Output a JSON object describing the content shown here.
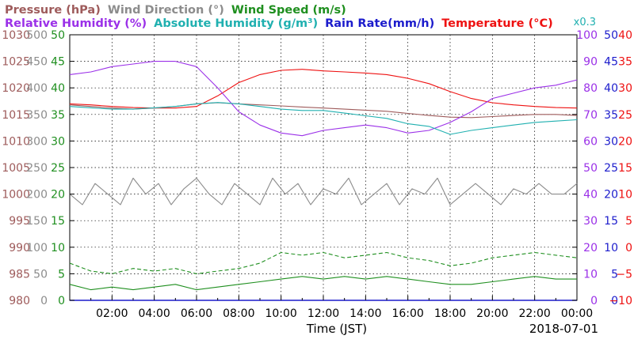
{
  "chart_data": {
    "type": "line",
    "legend": [
      {
        "label": "Pressure (hPa)",
        "color": "#9e5b5b"
      },
      {
        "label": "Wind Direction (°)",
        "color": "#8c8c8c"
      },
      {
        "label": "Wind Speed (m/s)",
        "color": "#1f8f1f"
      },
      {
        "label": "Relative Humidity (%)",
        "color": "#9b30e8"
      },
      {
        "label": "Absolute Humidity (g/m³)",
        "color": "#20b0b0"
      },
      {
        "label": "Rain Rate(mm/h)",
        "color": "#1c1ccc"
      },
      {
        "label": "Temperature (°C)",
        "color": "#ee1111"
      }
    ],
    "abs_humidity_scale_note": "x0.3",
    "xlabel": "Time (JST)",
    "date_label": "2018-07-01",
    "x_ticks": [
      "02:00",
      "04:00",
      "06:00",
      "08:00",
      "10:00",
      "12:00",
      "14:00",
      "16:00",
      "18:00",
      "20:00",
      "22:00",
      "00:00"
    ],
    "x_range_hours": [
      0,
      24
    ],
    "grid": true,
    "left_axes": [
      {
        "name": "pressure",
        "color": "#9e5b5b",
        "labels": [
          "980",
          "985",
          "990",
          "995",
          "1000",
          "1005",
          "1010",
          "1015",
          "1020",
          "1025",
          "1030"
        ]
      },
      {
        "name": "wind_direction",
        "color": "#8c8c8c",
        "labels": [
          "0",
          "50",
          "100",
          "150",
          "200",
          "250",
          "300",
          "350",
          "400",
          "450",
          "500"
        ]
      },
      {
        "name": "wind_speed",
        "color": "#1f8f1f",
        "labels": [
          "0",
          "5",
          "10",
          "15",
          "20",
          "25",
          "30",
          "35",
          "40",
          "45",
          "50"
        ]
      }
    ],
    "right_axes": [
      {
        "name": "relative_humidity",
        "color": "#9b30e8",
        "labels": [
          "0",
          "10",
          "20",
          "30",
          "40",
          "50",
          "60",
          "70",
          "80",
          "90",
          "100"
        ]
      },
      {
        "name": "rain_rate",
        "color": "#1c1ccc",
        "labels": [
          "0",
          "5",
          "10",
          "15",
          "20",
          "25",
          "30",
          "35",
          "40",
          "45",
          "50"
        ]
      },
      {
        "name": "temperature",
        "color": "#ee1111",
        "labels": [
          "−10",
          "−5",
          "0",
          "5",
          "10",
          "15",
          "20",
          "25",
          "30",
          "35",
          "40"
        ]
      }
    ],
    "series": [
      {
        "name": "Temperature (°C)",
        "key": "temperature",
        "color": "#ee1111",
        "ylim": [
          -10,
          40
        ],
        "x": [
          0,
          1,
          2,
          3,
          4,
          5,
          6,
          7,
          8,
          9,
          10,
          11,
          12,
          13,
          14,
          15,
          16,
          17,
          18,
          19,
          20,
          21,
          22,
          23,
          24
        ],
        "values": [
          27,
          26.8,
          26.5,
          26.3,
          26.2,
          26.2,
          26.5,
          28.5,
          31,
          32.5,
          33.3,
          33.5,
          33.2,
          33,
          32.8,
          32.5,
          31.8,
          30.8,
          29.3,
          28,
          27.2,
          26.8,
          26.5,
          26.3,
          26.2
        ]
      },
      {
        "name": "Pressure (hPa)",
        "key": "pressure",
        "color": "#9e5b5b",
        "ylim": [
          980,
          1030
        ],
        "x": [
          0,
          1,
          2,
          3,
          4,
          5,
          6,
          7,
          8,
          9,
          10,
          11,
          12,
          13,
          14,
          15,
          16,
          17,
          18,
          19,
          20,
          21,
          22,
          23,
          24
        ],
        "values": [
          1016.8,
          1016.5,
          1016.2,
          1016,
          1016.2,
          1016.5,
          1017,
          1017.2,
          1017,
          1016.8,
          1016.6,
          1016.4,
          1016.2,
          1016,
          1015.8,
          1015.6,
          1015.2,
          1014.8,
          1014.5,
          1014.4,
          1014.6,
          1014.8,
          1015,
          1015,
          1014.8
        ]
      },
      {
        "name": "Relative Humidity (%)",
        "key": "relative_humidity",
        "color": "#9b30e8",
        "ylim": [
          0,
          100
        ],
        "x": [
          0,
          1,
          2,
          3,
          4,
          5,
          6,
          7,
          8,
          9,
          10,
          11,
          12,
          13,
          14,
          15,
          16,
          17,
          18,
          19,
          20,
          21,
          22,
          23,
          24
        ],
        "values": [
          85,
          86,
          88,
          89,
          90,
          90,
          88,
          80,
          71,
          66,
          63,
          62,
          64,
          65,
          66,
          65,
          63,
          64,
          67,
          71,
          76,
          78,
          80,
          81,
          83
        ]
      },
      {
        "name": "Absolute Humidity (g/m³) x0.3",
        "key": "absolute_humidity",
        "color": "#20b0b0",
        "ylim": [
          0,
          100
        ],
        "x": [
          0,
          1,
          2,
          3,
          4,
          5,
          6,
          7,
          8,
          9,
          10,
          11,
          12,
          13,
          14,
          15,
          16,
          17,
          18,
          19,
          20,
          21,
          22,
          23,
          24
        ],
        "values": [
          73,
          72.5,
          72,
          72,
          72.5,
          73,
          74,
          74.5,
          74,
          73,
          72,
          71.5,
          71.5,
          70.5,
          69.5,
          68.5,
          66.5,
          65.5,
          62.5,
          64,
          65,
          66,
          67,
          67.5,
          68
        ]
      },
      {
        "name": "Wind Direction (°)",
        "key": "wind_direction",
        "color": "#8c8c8c",
        "ylim": [
          0,
          500
        ],
        "x": [
          0,
          0.6,
          1.2,
          1.8,
          2.4,
          3,
          3.6,
          4.2,
          4.8,
          5.4,
          6,
          6.6,
          7.2,
          7.8,
          8.4,
          9,
          9.6,
          10.2,
          10.8,
          11.4,
          12,
          12.6,
          13.2,
          13.8,
          14.4,
          15,
          15.6,
          16.2,
          16.8,
          17.4,
          18,
          18.6,
          19.2,
          19.8,
          20.4,
          21,
          21.6,
          22.2,
          22.8,
          23.4,
          24
        ],
        "values": [
          200,
          180,
          220,
          200,
          180,
          230,
          200,
          220,
          180,
          210,
          230,
          200,
          180,
          220,
          200,
          180,
          230,
          200,
          220,
          180,
          210,
          200,
          230,
          180,
          200,
          220,
          180,
          210,
          200,
          230,
          180,
          200,
          220,
          200,
          180,
          210,
          200,
          220,
          200,
          200,
          220
        ]
      },
      {
        "name": "Wind Speed (m/s) gust",
        "key": "wind_speed_gust",
        "color": "#1f8f1f",
        "dashed": true,
        "ylim": [
          0,
          50
        ],
        "x": [
          0,
          1,
          2,
          3,
          4,
          5,
          6,
          7,
          8,
          9,
          10,
          11,
          12,
          13,
          14,
          15,
          16,
          17,
          18,
          19,
          20,
          21,
          22,
          23,
          24
        ],
        "values": [
          7,
          5.5,
          5,
          6,
          5.5,
          6,
          5,
          5.5,
          6,
          7,
          9,
          8.5,
          9,
          8,
          8.5,
          9,
          8,
          7.5,
          6.5,
          7,
          8,
          8.5,
          9,
          8.5,
          8
        ]
      },
      {
        "name": "Wind Speed (m/s)",
        "key": "wind_speed_mean",
        "color": "#1f8f1f",
        "ylim": [
          0,
          50
        ],
        "x": [
          0,
          1,
          2,
          3,
          4,
          5,
          6,
          7,
          8,
          9,
          10,
          11,
          12,
          13,
          14,
          15,
          16,
          17,
          18,
          19,
          20,
          21,
          22,
          23,
          24
        ],
        "values": [
          3,
          2,
          2.5,
          2,
          2.5,
          3,
          2,
          2.5,
          3,
          3.5,
          4,
          4.5,
          4,
          4.5,
          4,
          4.5,
          4,
          3.5,
          3,
          3,
          3.5,
          4,
          4.5,
          4,
          4
        ]
      },
      {
        "name": "Rain Rate(mm/h)",
        "key": "rain_rate",
        "color": "#1c1ccc",
        "ylim": [
          0,
          50
        ],
        "x": [
          0,
          24
        ],
        "values": [
          0,
          0
        ]
      }
    ]
  }
}
